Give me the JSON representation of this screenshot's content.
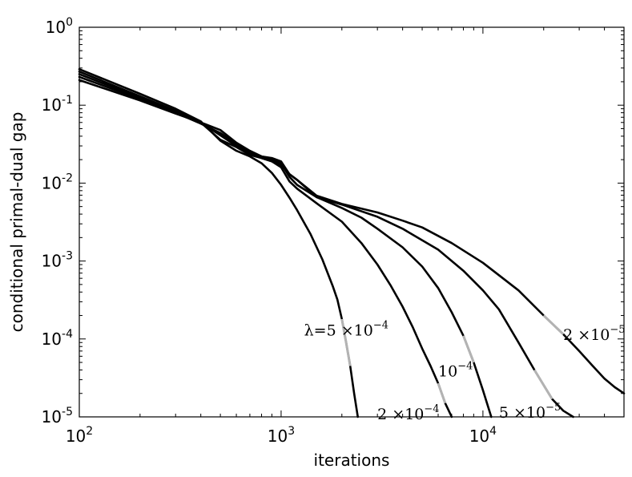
{
  "chart_data": {
    "type": "line",
    "xlabel": "iterations",
    "ylabel": "conditional primal-dual gap",
    "xscale": "log",
    "yscale": "log",
    "xlim": [
      100,
      50000
    ],
    "ylim": [
      1e-05,
      1
    ],
    "grid": false,
    "x_ticks": [
      {
        "base": "10",
        "exp": "2",
        "value": 100
      },
      {
        "base": "10",
        "exp": "3",
        "value": 1000
      },
      {
        "base": "10",
        "exp": "4",
        "value": 10000
      }
    ],
    "y_ticks": [
      {
        "base": "10",
        "exp": "0",
        "value": 1
      },
      {
        "base": "10",
        "exp": "-1",
        "value": 0.1
      },
      {
        "base": "10",
        "exp": "-2",
        "value": 0.01
      },
      {
        "base": "10",
        "exp": "-3",
        "value": 0.001
      },
      {
        "base": "10",
        "exp": "-4",
        "value": 0.0001
      },
      {
        "base": "10",
        "exp": "-5",
        "value": 1e-05
      }
    ],
    "line_color": "#000000",
    "highlight_color": "#b3b3b3",
    "series": [
      {
        "label_main": "λ=5 ×10",
        "label_exp": "−4",
        "label_at": [
          1300,
          0.00013
        ],
        "highlight": [
          2000,
          2250
        ],
        "points": [
          [
            100,
            0.29
          ],
          [
            200,
            0.14
          ],
          [
            300,
            0.09
          ],
          [
            400,
            0.062
          ],
          [
            500,
            0.035
          ],
          [
            600,
            0.026
          ],
          [
            700,
            0.022
          ],
          [
            800,
            0.018
          ],
          [
            900,
            0.0135
          ],
          [
            1000,
            0.0095
          ],
          [
            1100,
            0.0065
          ],
          [
            1200,
            0.0045
          ],
          [
            1400,
            0.0022
          ],
          [
            1600,
            0.00105
          ],
          [
            1800,
            0.00048
          ],
          [
            1900,
            0.00032
          ],
          [
            2000,
            0.00018
          ],
          [
            2100,
            9e-05
          ],
          [
            2200,
            4.5e-05
          ],
          [
            2300,
            2e-05
          ],
          [
            2400,
            1e-05
          ]
        ]
      },
      {
        "label_main": "2 ×10",
        "label_exp": "−4",
        "label_at": [
          3000,
          1.1e-05
        ],
        "highlight": [
          5600,
          6600
        ],
        "points": [
          [
            100,
            0.27
          ],
          [
            200,
            0.13
          ],
          [
            300,
            0.085
          ],
          [
            400,
            0.06
          ],
          [
            500,
            0.036
          ],
          [
            600,
            0.029
          ],
          [
            700,
            0.023
          ],
          [
            800,
            0.021
          ],
          [
            900,
            0.019
          ],
          [
            1000,
            0.016
          ],
          [
            1100,
            0.0105
          ],
          [
            1200,
            0.0085
          ],
          [
            1500,
            0.0055
          ],
          [
            2000,
            0.0032
          ],
          [
            2500,
            0.0017
          ],
          [
            3000,
            0.0009
          ],
          [
            3500,
            0.00048
          ],
          [
            4000,
            0.00026
          ],
          [
            4500,
            0.00014
          ],
          [
            5000,
            7.5e-05
          ],
          [
            5500,
            4.5e-05
          ],
          [
            6000,
            2.7e-05
          ],
          [
            6500,
            1.5e-05
          ],
          [
            7000,
            1e-05
          ]
        ]
      },
      {
        "label_main": "10",
        "label_exp": "−4",
        "label_at": [
          6000,
          3.9e-05
        ],
        "highlight": [
          7500,
          9500
        ],
        "points": [
          [
            100,
            0.25
          ],
          [
            200,
            0.125
          ],
          [
            300,
            0.082
          ],
          [
            400,
            0.06
          ],
          [
            500,
            0.041
          ],
          [
            600,
            0.03
          ],
          [
            700,
            0.024
          ],
          [
            800,
            0.021
          ],
          [
            900,
            0.019
          ],
          [
            1000,
            0.017
          ],
          [
            1100,
            0.013
          ],
          [
            1200,
            0.011
          ],
          [
            1500,
            0.0066
          ],
          [
            2000,
            0.0048
          ],
          [
            2500,
            0.0036
          ],
          [
            3000,
            0.0026
          ],
          [
            4000,
            0.0015
          ],
          [
            5000,
            0.00085
          ],
          [
            6000,
            0.00045
          ],
          [
            7000,
            0.00022
          ],
          [
            8000,
            0.00011
          ],
          [
            9000,
            5e-05
          ],
          [
            10000,
            2.2e-05
          ],
          [
            11000,
            1e-05
          ]
        ]
      },
      {
        "label_main": "5 ×10",
        "label_exp": "−5",
        "label_at": [
          12000,
          1.15e-05
        ],
        "highlight": [
          17000,
          22000
        ],
        "points": [
          [
            100,
            0.23
          ],
          [
            200,
            0.12
          ],
          [
            300,
            0.08
          ],
          [
            400,
            0.058
          ],
          [
            500,
            0.044
          ],
          [
            600,
            0.032
          ],
          [
            700,
            0.025
          ],
          [
            800,
            0.022
          ],
          [
            900,
            0.02
          ],
          [
            1000,
            0.018
          ],
          [
            1100,
            0.012
          ],
          [
            1200,
            0.0095
          ],
          [
            1500,
            0.0066
          ],
          [
            2000,
            0.0053
          ],
          [
            3000,
            0.0037
          ],
          [
            4000,
            0.0026
          ],
          [
            6000,
            0.0014
          ],
          [
            8000,
            0.00075
          ],
          [
            10000,
            0.00042
          ],
          [
            12000,
            0.00024
          ],
          [
            15000,
            9e-05
          ],
          [
            18000,
            4e-05
          ],
          [
            22000,
            1.7e-05
          ],
          [
            25000,
            1.2e-05
          ],
          [
            28000,
            1e-05
          ]
        ]
      },
      {
        "label_main": "2 ×10",
        "label_exp": "−5",
        "label_at": [
          25000,
          0.000115
        ],
        "highlight": [
          20000,
          26000
        ],
        "points": [
          [
            100,
            0.21
          ],
          [
            200,
            0.115
          ],
          [
            300,
            0.078
          ],
          [
            400,
            0.06
          ],
          [
            500,
            0.048
          ],
          [
            600,
            0.033
          ],
          [
            700,
            0.026
          ],
          [
            800,
            0.022
          ],
          [
            900,
            0.021
          ],
          [
            1000,
            0.019
          ],
          [
            1100,
            0.013
          ],
          [
            1200,
            0.011
          ],
          [
            1500,
            0.0069
          ],
          [
            2000,
            0.0054
          ],
          [
            3000,
            0.0042
          ],
          [
            4000,
            0.0033
          ],
          [
            5000,
            0.0027
          ],
          [
            7000,
            0.0017
          ],
          [
            10000,
            0.00095
          ],
          [
            15000,
            0.00042
          ],
          [
            20000,
            0.0002
          ],
          [
            25000,
            0.000115
          ],
          [
            30000,
            7e-05
          ],
          [
            35000,
            4.5e-05
          ],
          [
            40000,
            3.1e-05
          ],
          [
            45000,
            2.4e-05
          ],
          [
            50000,
            2e-05
          ]
        ]
      }
    ]
  }
}
